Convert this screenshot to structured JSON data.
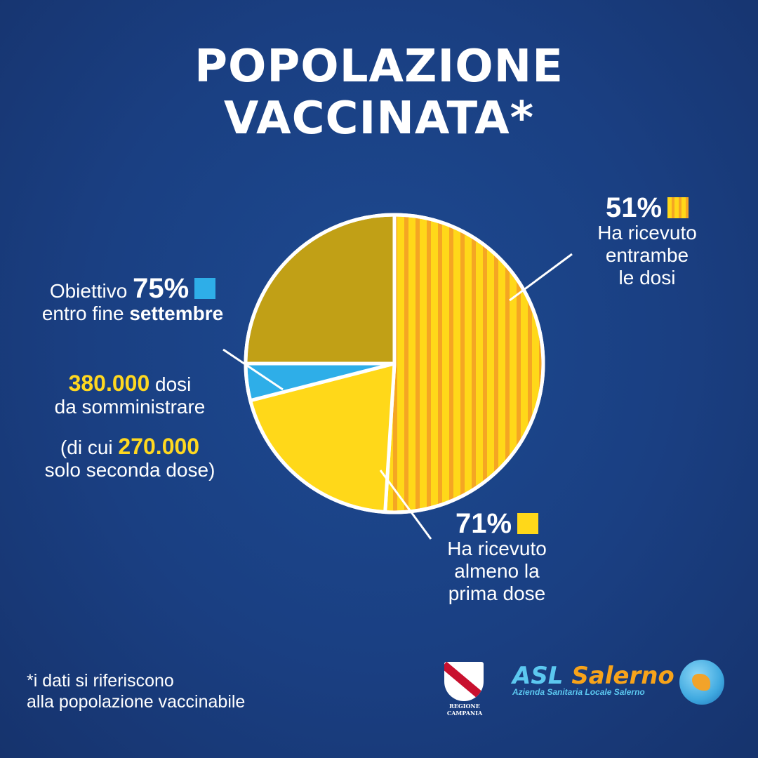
{
  "title": {
    "line1": "POPOLAZIONE",
    "line2": "VACCINATA*"
  },
  "colors": {
    "background": "#1a3f82",
    "yellow": "#ffd819",
    "orange_stripe": "#f5a623",
    "cyan": "#2eaee8",
    "olive": "#c1a016",
    "white": "#ffffff"
  },
  "labels": {
    "both": {
      "pct": "51%",
      "l1": "Ha ricevuto",
      "l2": "entrambe",
      "l3": "le dosi"
    },
    "first": {
      "pct": "71%",
      "l1": "Ha ricevuto",
      "l2": "almeno la",
      "l3": "prima dose"
    },
    "target": {
      "prefix": "Obiettivo",
      "pct": "75%",
      "l2a": "entro fine",
      "l2b": "settembre"
    },
    "doses": {
      "num": "380.000",
      "w1": "dosi",
      "l2": "da somministrare"
    },
    "second": {
      "open": "(di cui",
      "num": "270.000",
      "l2": "solo seconda dose)"
    }
  },
  "footnote": {
    "l1": "*i dati si riferiscono",
    "l2": "alla popolazione vaccinabile"
  },
  "logos": {
    "regione": "REGIONE CAMPANIA",
    "asl_a": "ASL",
    "asl_b": "Salerno",
    "asl_sub": "Azienda Sanitaria Locale Salerno"
  },
  "chart_data": {
    "type": "pie",
    "slices": [
      {
        "label": "Ha ricevuto entrambe le dosi",
        "value": 51,
        "color": "#ffd819",
        "pattern": "stripes"
      },
      {
        "label": "Ha ricevuto almeno la prima dose",
        "value": 20,
        "color": "#ffd819"
      },
      {
        "label": "Obiettivo 75% entro fine settembre",
        "value": 4,
        "color": "#2eaee8"
      },
      {
        "label": "",
        "value": 25,
        "color": "#c1a016"
      }
    ],
    "start_angle_deg": 0,
    "direction": "clockwise"
  }
}
